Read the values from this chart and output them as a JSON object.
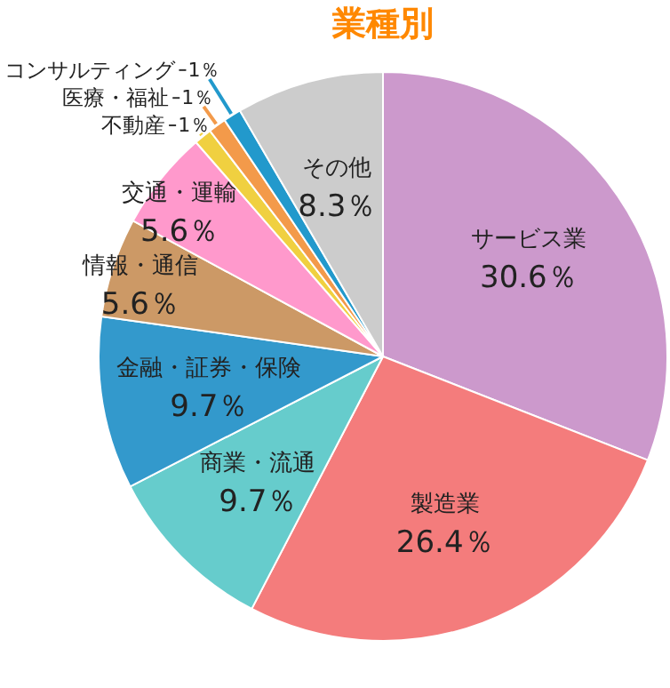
{
  "chart_data": {
    "type": "pie",
    "title": "業種別",
    "categories": [
      "サービス業",
      "製造業",
      "商業・流通",
      "金融・証券・保険",
      "情報・通信",
      "交通・運輸",
      "不動産",
      "医療・福祉",
      "コンサルティング",
      "その他"
    ],
    "values": [
      30.6,
      26.4,
      9.7,
      9.7,
      5.6,
      5.6,
      1,
      1,
      1,
      8.3
    ],
    "colors": [
      "#cc99cc",
      "#f47c7c",
      "#66cccc",
      "#3399cc",
      "#cc9966",
      "#ff99cc",
      "#f0d040",
      "#f39a4a",
      "#2299cc",
      "#cccccc"
    ],
    "value_labels": [
      "30.6％",
      "26.4％",
      "9.7％",
      "9.7％",
      "5.6％",
      "5.6％",
      "1％",
      "1％",
      "1％",
      "8.3％"
    ]
  }
}
